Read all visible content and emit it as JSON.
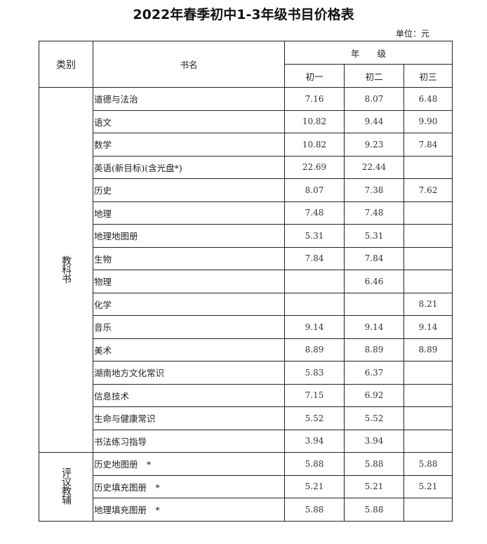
{
  "title": "2022年春季初中1-3年级书目价格表",
  "unit": "单位：元",
  "header": {
    "category": "类别",
    "book_name": "书名",
    "grade": "年　　级",
    "grades": [
      "初一",
      "初二",
      "初三"
    ]
  },
  "sections": [
    {
      "category": "教科书",
      "rows": [
        {
          "name": "道德与法治",
          "prices": [
            "7.16",
            "8.07",
            "6.48"
          ]
        },
        {
          "name": "语文",
          "prices": [
            "10.82",
            "9.44",
            "9.90"
          ]
        },
        {
          "name": "数学",
          "prices": [
            "10.82",
            "9.23",
            "7.84"
          ]
        },
        {
          "name": "英语(新目标)(含光盘*)",
          "prices": [
            "22.69",
            "22.44",
            ""
          ]
        },
        {
          "name": "历史",
          "prices": [
            "8.07",
            "7.38",
            "7.62"
          ]
        },
        {
          "name": "地理",
          "prices": [
            "7.48",
            "7.48",
            ""
          ]
        },
        {
          "name": "地理地图册",
          "prices": [
            "5.31",
            "5.31",
            ""
          ]
        },
        {
          "name": "生物",
          "prices": [
            "7.84",
            "7.84",
            ""
          ]
        },
        {
          "name": "物理",
          "prices": [
            "",
            "6.46",
            ""
          ]
        },
        {
          "name": "化学",
          "prices": [
            "",
            "",
            "8.21"
          ]
        },
        {
          "name": "音乐",
          "prices": [
            "9.14",
            "9.14",
            "9.14"
          ]
        },
        {
          "name": "美术",
          "prices": [
            "8.89",
            "8.89",
            "8.89"
          ]
        },
        {
          "name": "湖南地方文化常识",
          "prices": [
            "5.83",
            "6.37",
            ""
          ]
        },
        {
          "name": "信息技术",
          "prices": [
            "7.15",
            "6.92",
            ""
          ]
        },
        {
          "name": "生命与健康常识",
          "prices": [
            "5.52",
            "5.52",
            ""
          ]
        },
        {
          "name": "书法练习指导",
          "prices": [
            "3.94",
            "3.94",
            ""
          ]
        }
      ]
    },
    {
      "category": "评议教辅",
      "rows": [
        {
          "name": "历史地图册　*",
          "prices": [
            "5.88",
            "5.88",
            "5.88"
          ]
        },
        {
          "name": "历史填充图册　*",
          "prices": [
            "5.21",
            "5.21",
            "5.21"
          ]
        },
        {
          "name": "地理填充图册　*",
          "prices": [
            "5.88",
            "5.88",
            ""
          ]
        }
      ]
    }
  ]
}
